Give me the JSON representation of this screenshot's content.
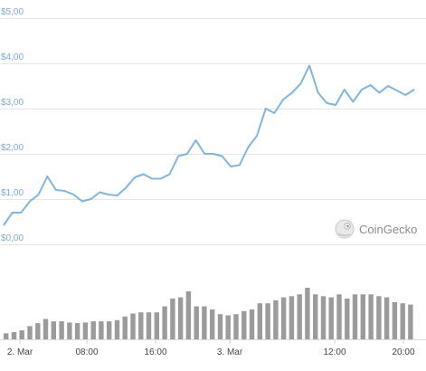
{
  "watermark": {
    "text": "CoinGecko",
    "icon": "gecko-logo-icon"
  },
  "colors": {
    "price_line": "#7fb4e6",
    "volume_bar": "#9b9b9b",
    "y_tick": "#7fa8d6",
    "grid": "#e6e6e6"
  },
  "chart_data": [
    {
      "type": "line",
      "title": "",
      "xlabel": "",
      "ylabel": "",
      "y_ticks": [
        "$0,00",
        "$1,00",
        "$2,00",
        "$3,00",
        "$4,00",
        "$5,00"
      ],
      "ylim": [
        0,
        5
      ],
      "grid": true,
      "legend": "none",
      "series": [
        {
          "values": [
            0.42,
            0.7,
            0.7,
            0.95,
            1.1,
            1.5,
            1.2,
            1.18,
            1.1,
            0.95,
            1.0,
            1.15,
            1.1,
            1.08,
            1.25,
            1.48,
            1.55,
            1.45,
            1.45,
            1.55,
            1.95,
            2.0,
            2.3,
            2.0,
            2.0,
            1.95,
            1.72,
            1.75,
            2.15,
            2.4,
            3.0,
            2.9,
            3.2,
            3.35,
            3.55,
            3.95,
            3.35,
            3.12,
            3.08,
            3.42,
            3.15,
            3.42,
            3.52,
            3.35,
            3.5,
            3.4,
            3.3,
            3.42
          ]
        }
      ]
    },
    {
      "type": "bar",
      "title": "",
      "x_ticks": [
        "2. Mar",
        "08:00",
        "16:00",
        "3. Mar",
        "12:00",
        "20:00"
      ],
      "series": [
        {
          "values": [
            0.1,
            0.12,
            0.15,
            0.22,
            0.27,
            0.34,
            0.3,
            0.3,
            0.28,
            0.27,
            0.28,
            0.3,
            0.3,
            0.3,
            0.32,
            0.38,
            0.43,
            0.45,
            0.45,
            0.45,
            0.55,
            0.68,
            0.7,
            0.8,
            0.55,
            0.55,
            0.5,
            0.42,
            0.4,
            0.42,
            0.47,
            0.5,
            0.6,
            0.6,
            0.65,
            0.7,
            0.72,
            0.75,
            0.86,
            0.75,
            0.72,
            0.7,
            0.75,
            0.68,
            0.75,
            0.75,
            0.75,
            0.72,
            0.7,
            0.62,
            0.6,
            0.58
          ]
        }
      ]
    }
  ]
}
